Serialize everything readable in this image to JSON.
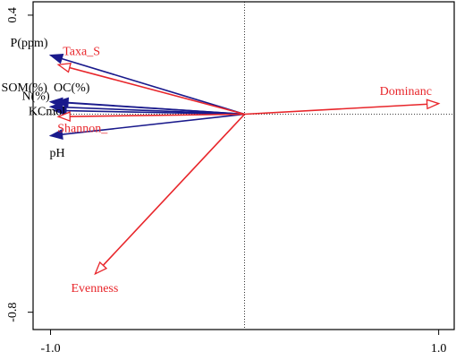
{
  "chart_data": {
    "type": "biplot",
    "xlim": [
      -1.09,
      1.08
    ],
    "ylim": [
      -0.87,
      0.454
    ],
    "xticks": [
      {
        "value": -1,
        "label": "-1.0"
      },
      {
        "value": 1,
        "label": "1.0"
      }
    ],
    "yticks": [
      0.4,
      -0.8
    ],
    "arrows": [
      {
        "label": "P(ppm)",
        "x": -1.0,
        "y": 0.238,
        "color": "#1a1a8c",
        "head": "filled"
      },
      {
        "label": "SOM(%)",
        "x": -1.0,
        "y": 0.05,
        "color": "#1a1a8c",
        "head": "filled"
      },
      {
        "label": "OC(%)",
        "x": -0.97,
        "y": 0.05,
        "color": "#1a1a8c",
        "head": "filled"
      },
      {
        "label": "N(%)",
        "x": -1.0,
        "y": 0.03,
        "color": "#1a1a8c",
        "head": "filled"
      },
      {
        "label": "KCmol",
        "x": -0.98,
        "y": 0.015,
        "color": "#1a1a8c",
        "head": "filled"
      },
      {
        "label": "pH",
        "x": -1.0,
        "y": -0.087,
        "color": "#1a1a8c",
        "head": "filled"
      },
      {
        "label": "Taxa_S",
        "x": -0.96,
        "y": 0.2,
        "color": "#e8262b",
        "head": "open"
      },
      {
        "label": "Shannon_",
        "x": -0.96,
        "y": -0.01,
        "color": "#e8262b",
        "head": "open"
      },
      {
        "label": "Dominanc",
        "x": 1.0,
        "y": 0.043,
        "color": "#e8262b",
        "head": "open"
      },
      {
        "label": "Evenness",
        "x": -0.77,
        "y": -0.645,
        "color": "#e8262b",
        "head": "open"
      }
    ]
  }
}
